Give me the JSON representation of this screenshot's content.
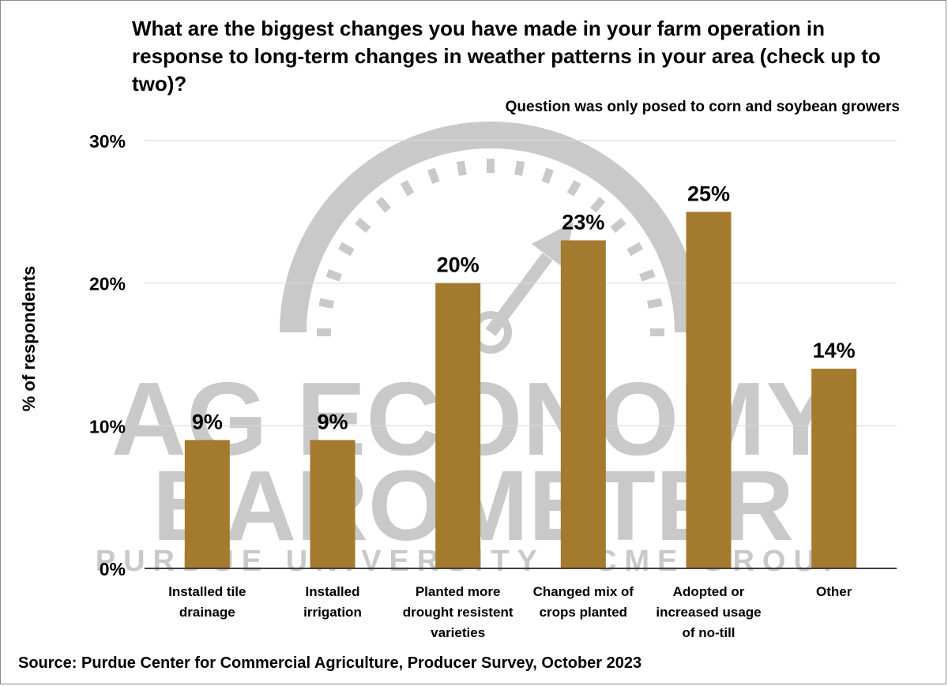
{
  "header": {
    "title": "What are the biggest changes you have made in your farm operation in response to long-term changes in weather patterns in your area  (check up to two)?",
    "note": "Question was only posed to corn and soybean growers"
  },
  "footer": {
    "source": "Source: Purdue Center for Commercial Agriculture, Producer Survey, October 2023"
  },
  "watermark": {
    "line1": "AG ECONOMY",
    "line2": "BAROMETER",
    "line3": "PURDUE UNIVERSITY · CME GROUP"
  },
  "colors": {
    "bar": "#a47a2e",
    "grid": "#d9d9d9",
    "axis": "#404040",
    "watermark": "#c9c9c9"
  },
  "chart_data": {
    "type": "bar",
    "categories": [
      [
        "Installed tile",
        "drainage"
      ],
      [
        "Installed",
        "irrigation"
      ],
      [
        "Planted more",
        "drought resistent",
        "varieties"
      ],
      [
        "Changed mix of",
        "crops planted"
      ],
      [
        "Adopted or",
        "increased usage",
        "of no-till"
      ],
      [
        "Other"
      ]
    ],
    "values": [
      9,
      9,
      20,
      23,
      25,
      14
    ],
    "data_labels": [
      "9%",
      "9%",
      "20%",
      "23%",
      "25%",
      "14%"
    ],
    "ylabel": "% of respondents",
    "ylim": [
      0,
      30
    ],
    "yticks": [
      0,
      10,
      20,
      30
    ],
    "ytick_labels": [
      "0%",
      "10%",
      "20%",
      "30%"
    ],
    "grid": true,
    "legend": "none"
  }
}
